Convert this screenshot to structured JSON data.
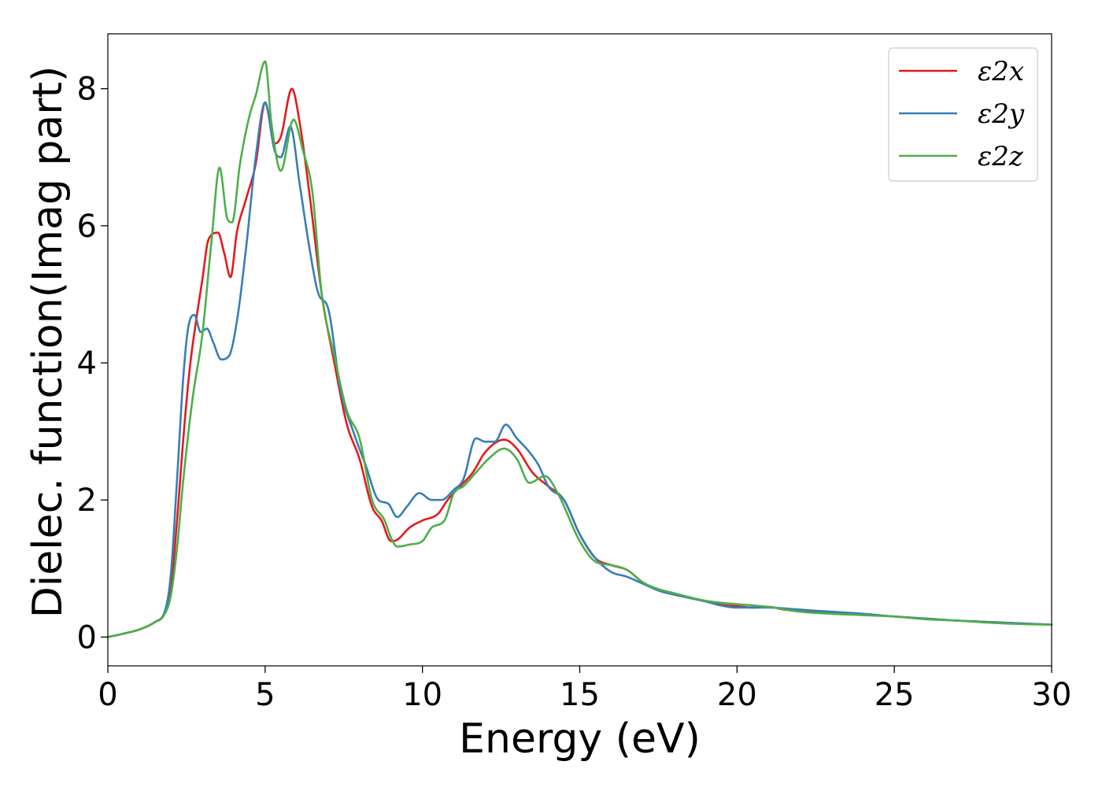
{
  "chart_data": {
    "type": "line",
    "xlabel": "Energy (eV)",
    "ylabel": "Dielec. function(Imag part)",
    "xlim": [
      0,
      30
    ],
    "ylim": [
      -0.42,
      8.8
    ],
    "x_ticks": [
      "0",
      "5",
      "10",
      "15",
      "20",
      "25",
      "30"
    ],
    "y_ticks": [
      "0",
      "2",
      "4",
      "6",
      "8"
    ],
    "grid": false,
    "legend_position": "top-right",
    "series": [
      {
        "name": "ε2x",
        "color": "#e41a1c",
        "x": [
          0,
          0.5,
          1.0,
          1.5,
          1.8,
          2.0,
          2.2,
          2.4,
          2.6,
          2.8,
          3.0,
          3.2,
          3.5,
          3.7,
          3.9,
          4.1,
          4.4,
          4.7,
          5.0,
          5.3,
          5.5,
          5.85,
          6.1,
          6.4,
          6.8,
          7.2,
          7.6,
          8.0,
          8.4,
          8.7,
          9.0,
          9.2,
          9.6,
          10.0,
          10.5,
          10.8,
          11.2,
          11.6,
          12.0,
          12.6,
          13.0,
          13.5,
          14.0,
          14.5,
          15.0,
          15.5,
          16.0,
          16.5,
          17.0,
          17.5,
          18.0,
          18.5,
          19.0,
          19.5,
          20.0,
          20.5,
          21.0,
          21.5,
          22.0,
          22.5,
          23.0,
          24.0,
          25.0,
          26.0,
          27.0,
          28.0,
          29.0,
          30.0
        ],
        "y": [
          0.0,
          0.05,
          0.11,
          0.22,
          0.35,
          0.7,
          1.7,
          2.9,
          3.9,
          4.6,
          5.2,
          5.8,
          5.9,
          5.6,
          5.25,
          5.9,
          6.4,
          6.9,
          7.8,
          7.2,
          7.3,
          8.0,
          7.5,
          6.5,
          5.0,
          4.0,
          3.1,
          2.6,
          1.9,
          1.7,
          1.4,
          1.42,
          1.6,
          1.7,
          1.8,
          2.0,
          2.2,
          2.4,
          2.7,
          2.88,
          2.75,
          2.4,
          2.2,
          2.0,
          1.5,
          1.15,
          1.05,
          0.98,
          0.8,
          0.68,
          0.62,
          0.57,
          0.52,
          0.47,
          0.45,
          0.43,
          0.44,
          0.4,
          0.38,
          0.37,
          0.35,
          0.33,
          0.3,
          0.27,
          0.24,
          0.22,
          0.2,
          0.18
        ]
      },
      {
        "name": "ε2y",
        "color": "#377eb8",
        "x": [
          0,
          0.5,
          1.0,
          1.5,
          1.8,
          2.0,
          2.2,
          2.4,
          2.55,
          2.75,
          2.95,
          3.15,
          3.35,
          3.6,
          3.85,
          4.1,
          4.4,
          4.7,
          5.0,
          5.3,
          5.5,
          5.8,
          6.1,
          6.4,
          6.7,
          7.0,
          7.4,
          7.8,
          8.2,
          8.6,
          8.9,
          9.2,
          9.5,
          9.9,
          10.3,
          10.6,
          11.0,
          11.3,
          11.7,
          12.0,
          12.3,
          12.65,
          13.0,
          13.4,
          13.7,
          14.0,
          14.5,
          15.0,
          15.5,
          16.0,
          16.5,
          17.0,
          17.5,
          18.0,
          18.5,
          19.0,
          19.5,
          20.0,
          21.0,
          22.0,
          23.0,
          24.0,
          25.0,
          26.0,
          27.0,
          28.0,
          29.0,
          30.0
        ],
        "y": [
          0.0,
          0.05,
          0.11,
          0.22,
          0.36,
          0.9,
          2.3,
          3.8,
          4.5,
          4.7,
          4.45,
          4.5,
          4.3,
          4.05,
          4.1,
          4.6,
          5.7,
          7.0,
          7.8,
          7.1,
          7.0,
          7.45,
          6.6,
          5.7,
          5.0,
          4.8,
          3.6,
          3.0,
          2.5,
          2.0,
          1.95,
          1.75,
          1.9,
          2.1,
          2.0,
          2.0,
          2.15,
          2.3,
          2.9,
          2.85,
          2.85,
          3.1,
          2.9,
          2.7,
          2.5,
          2.2,
          2.0,
          1.5,
          1.15,
          0.95,
          0.88,
          0.78,
          0.68,
          0.62,
          0.57,
          0.52,
          0.46,
          0.43,
          0.43,
          0.4,
          0.37,
          0.34,
          0.3,
          0.27,
          0.24,
          0.22,
          0.2,
          0.18
        ]
      },
      {
        "name": "ε2z",
        "color": "#4daf4a",
        "x": [
          0,
          0.5,
          1.0,
          1.5,
          1.8,
          2.0,
          2.2,
          2.4,
          2.7,
          3.0,
          3.3,
          3.55,
          3.8,
          3.95,
          4.2,
          4.5,
          4.7,
          5.0,
          5.2,
          5.5,
          5.9,
          6.2,
          6.5,
          6.8,
          7.2,
          7.6,
          8.0,
          8.4,
          8.8,
          9.0,
          9.2,
          9.6,
          10.0,
          10.3,
          10.7,
          11.0,
          11.3,
          11.7,
          12.1,
          12.6,
          13.0,
          13.4,
          13.9,
          14.3,
          15.0,
          15.5,
          16.0,
          16.5,
          17.0,
          17.5,
          18.0,
          18.5,
          19.0,
          19.5,
          20.0,
          21.0,
          22.0,
          23.0,
          24.0,
          25.0,
          26.0,
          27.0,
          28.0,
          29.0,
          30.0
        ],
        "y": [
          0.0,
          0.05,
          0.11,
          0.22,
          0.33,
          0.6,
          1.3,
          2.3,
          3.5,
          4.4,
          5.8,
          6.85,
          6.1,
          6.05,
          6.9,
          7.6,
          7.9,
          8.4,
          7.5,
          6.8,
          7.55,
          7.1,
          6.5,
          5.0,
          4.1,
          3.3,
          2.9,
          2.0,
          1.7,
          1.45,
          1.32,
          1.35,
          1.4,
          1.6,
          1.7,
          2.1,
          2.2,
          2.4,
          2.6,
          2.75,
          2.6,
          2.25,
          2.35,
          2.1,
          1.4,
          1.1,
          1.05,
          0.98,
          0.8,
          0.7,
          0.64,
          0.58,
          0.53,
          0.5,
          0.48,
          0.44,
          0.37,
          0.34,
          0.32,
          0.3,
          0.26,
          0.24,
          0.21,
          0.19,
          0.18
        ]
      }
    ]
  }
}
